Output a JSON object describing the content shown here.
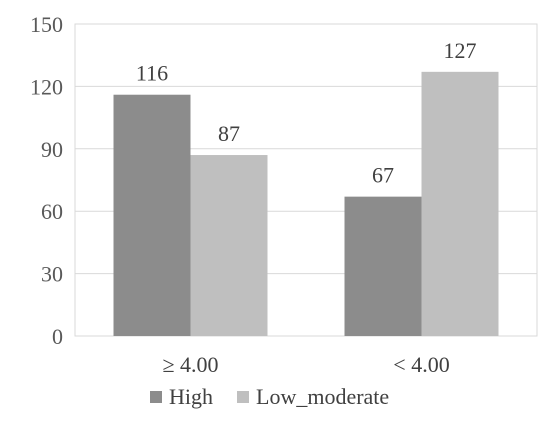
{
  "chart_data": {
    "type": "bar",
    "categories": [
      "≥ 4.00",
      "< 4.00"
    ],
    "series": [
      {
        "name": "High",
        "values": [
          116,
          67
        ],
        "color": "#8c8c8c"
      },
      {
        "name": "Low_moderate",
        "values": [
          87,
          127
        ],
        "color": "#bfbfbf"
      }
    ],
    "title": "",
    "xlabel": "",
    "ylabel": "",
    "ylim": [
      0,
      150
    ],
    "yticks": [
      0,
      30,
      60,
      90,
      120,
      150
    ],
    "grid": true,
    "legend": "bottom",
    "data_labels": true
  }
}
